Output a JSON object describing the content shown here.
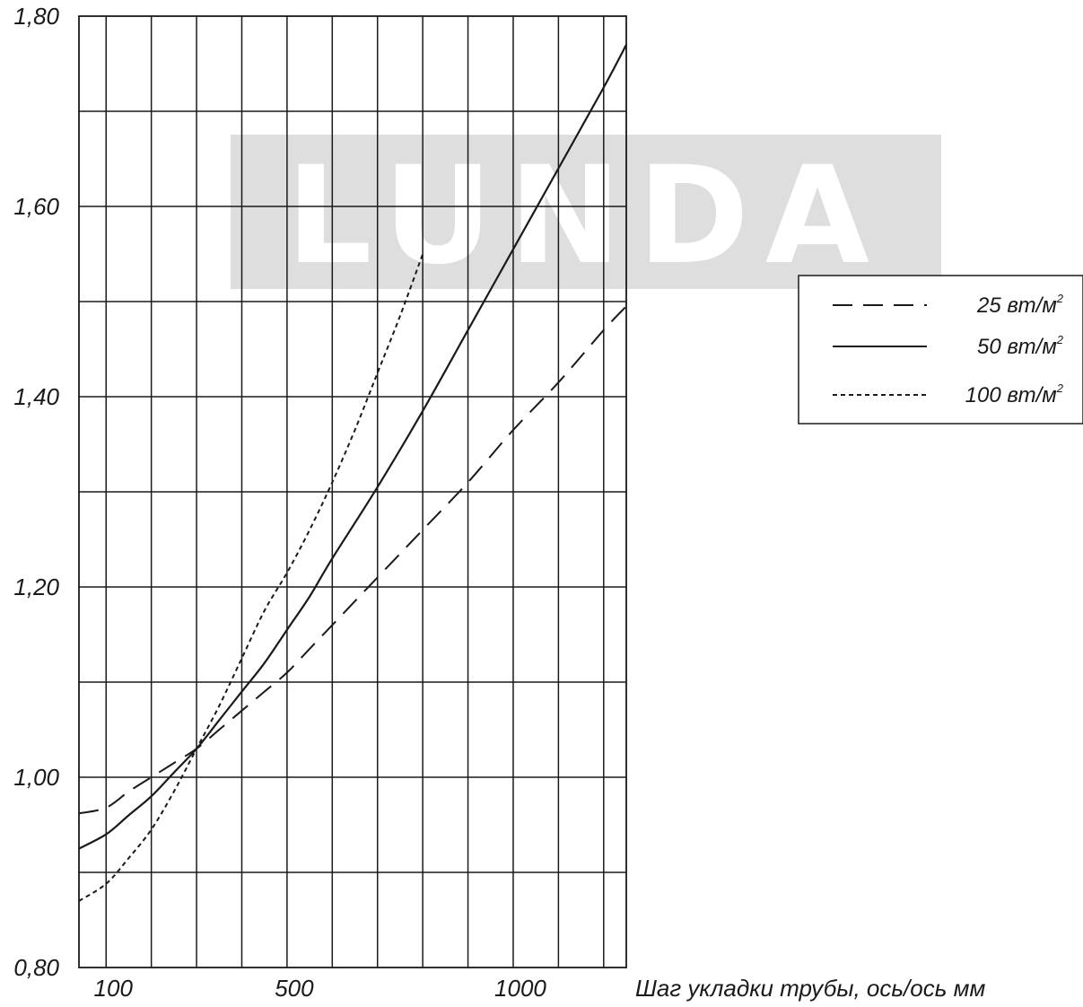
{
  "chart_data": {
    "type": "line",
    "title": "",
    "xlabel": "Шаг укладки трубы, ось/ось мм",
    "ylabel": "",
    "xlim": [
      40,
      1250
    ],
    "ylim": [
      0.8,
      1.8
    ],
    "grid": true,
    "x_tick_labels": [
      "100",
      "500",
      "1000"
    ],
    "x_tick_values": [
      100,
      500,
      1000
    ],
    "y_tick_labels": [
      "0,80",
      "1,00",
      "1,20",
      "1,40",
      "1,60",
      "1,80"
    ],
    "y_tick_values": [
      0.8,
      1.0,
      1.2,
      1.4,
      1.6,
      1.8
    ],
    "legend": {
      "placement": "right"
    },
    "series": [
      {
        "name": "25",
        "unit": "вт/м",
        "unit_sup": "2",
        "style": "dashed",
        "x": [
          40,
          100,
          150,
          200,
          250,
          300,
          350,
          400,
          450,
          500,
          550,
          600,
          700,
          800,
          900,
          1000,
          1100,
          1200,
          1250
        ],
        "y": [
          0.962,
          0.968,
          0.985,
          1.0,
          1.015,
          1.03,
          1.05,
          1.07,
          1.09,
          1.11,
          1.135,
          1.16,
          1.21,
          1.26,
          1.31,
          1.365,
          1.415,
          1.47,
          1.495
        ]
      },
      {
        "name": "50",
        "unit": "вт/м",
        "unit_sup": "2",
        "style": "solid",
        "x": [
          40,
          100,
          150,
          200,
          250,
          300,
          350,
          400,
          450,
          500,
          550,
          600,
          700,
          800,
          900,
          1000,
          1100,
          1200,
          1250
        ],
        "y": [
          0.925,
          0.94,
          0.96,
          0.98,
          1.005,
          1.03,
          1.06,
          1.09,
          1.12,
          1.155,
          1.19,
          1.23,
          1.305,
          1.385,
          1.47,
          1.555,
          1.64,
          1.725,
          1.77
        ]
      },
      {
        "name": "100",
        "unit": "вт/м",
        "unit_sup": "2",
        "style": "dotted",
        "x": [
          40,
          100,
          150,
          200,
          250,
          300,
          350,
          400,
          450,
          500,
          550,
          600,
          650,
          700,
          750,
          800
        ],
        "y": [
          0.87,
          0.888,
          0.915,
          0.945,
          0.985,
          1.03,
          1.075,
          1.125,
          1.175,
          1.215,
          1.26,
          1.31,
          1.365,
          1.425,
          1.485,
          1.55
        ]
      }
    ]
  },
  "watermark": "LUNDA"
}
